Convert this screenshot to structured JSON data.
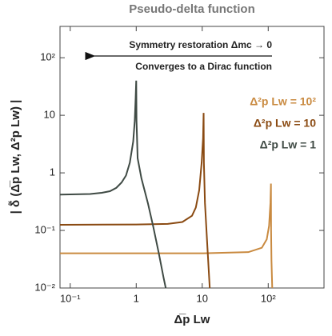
{
  "chart_data": {
    "type": "line",
    "title": "Pseudo-delta function",
    "x_label": "Δ̅p Lw",
    "y_label": "| δ̃ (Δ̅p Lw, Δ²p Lw) |",
    "annotations": [
      "Symmetry restoration Δmc → 0",
      "Converges to a Dirac function"
    ],
    "log_x": true,
    "log_y": true,
    "xlim": [
      0.07,
      700
    ],
    "ylim": [
      0.01,
      350
    ],
    "xticks": [
      {
        "value": 0.1,
        "label": "10⁻¹"
      },
      1,
      10,
      {
        "value": 100,
        "label": "10²"
      }
    ],
    "yticks": [
      {
        "value": 0.01,
        "label": "10⁻²"
      },
      {
        "value": 0.1,
        "label": "10⁻¹"
      },
      1,
      10,
      {
        "value": 100,
        "label": "10²"
      }
    ],
    "legend": "right",
    "series": [
      {
        "name": "Δ²p Lw = 10²",
        "color": "#c98a40",
        "x": [
          0.07,
          1,
          10,
          50,
          80,
          95,
          103,
          108,
          110,
          110.5,
          112,
          115
        ],
        "values": [
          0.04,
          0.04,
          0.04,
          0.042,
          0.05,
          0.07,
          0.12,
          0.3,
          0.65,
          0.1,
          0.03,
          0.01
        ]
      },
      {
        "name": "Δ²p Lw = 10",
        "color": "#8a4a12",
        "x": [
          0.07,
          1,
          3,
          5,
          7,
          8,
          9,
          9.8,
          10.3,
          10.5,
          10.6,
          11,
          12,
          13
        ],
        "values": [
          0.125,
          0.127,
          0.13,
          0.14,
          0.18,
          0.25,
          0.5,
          1.5,
          4,
          11,
          1.5,
          0.3,
          0.05,
          0.01
        ]
      },
      {
        "name": "Δ²p Lw = 1",
        "color": "#3f4a44",
        "x": [
          0.07,
          0.2,
          0.3,
          0.4,
          0.5,
          0.6,
          0.7,
          0.8,
          0.9,
          0.95,
          0.98,
          1.0,
          1.01,
          1.05,
          1.2,
          1.5,
          1.8,
          2.2,
          2.6,
          2.8
        ],
        "values": [
          0.42,
          0.43,
          0.45,
          0.48,
          0.55,
          0.68,
          0.9,
          1.5,
          3.5,
          8,
          20,
          40,
          8,
          1.8,
          0.8,
          0.3,
          0.12,
          0.04,
          0.015,
          0.01
        ]
      }
    ]
  }
}
